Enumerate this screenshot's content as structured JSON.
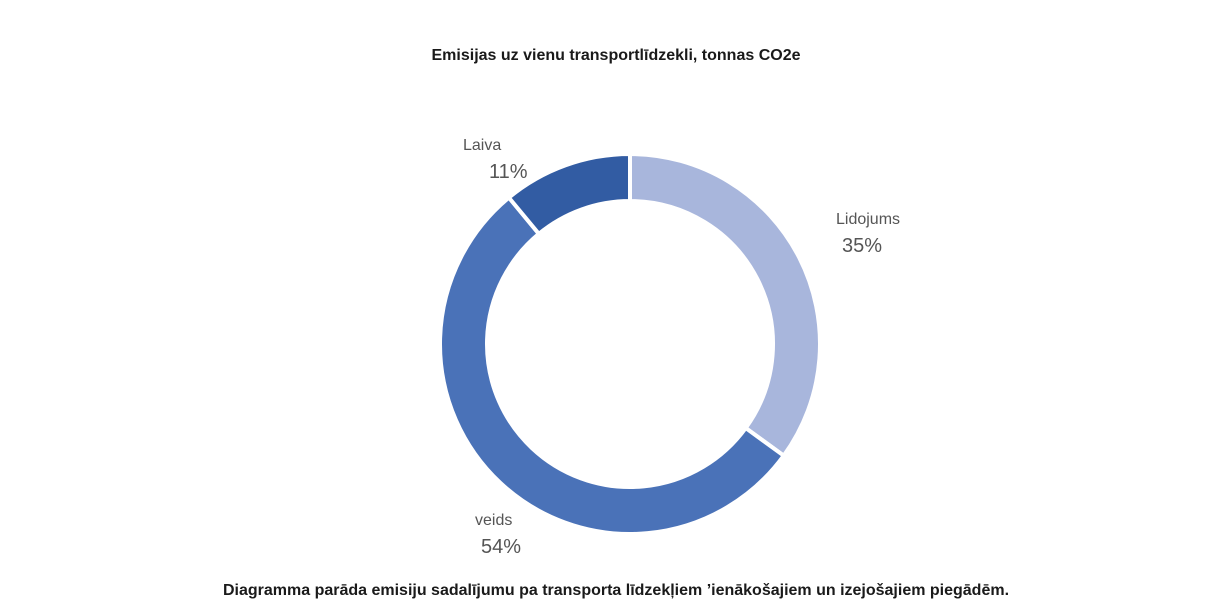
{
  "chart_data": {
    "type": "pie",
    "variant": "donut",
    "title": "Emisijas uz vienu transportlīdzekli, tonnas CO2e",
    "caption": "Diagramma parāda emisiju sadalījumu pa transporta līdzekļiem ’ienākošajiem un izejošajiem piegādēm.",
    "slices": [
      {
        "label": "Lidojums",
        "value": 35,
        "value_label": "35%",
        "color": "#A8B6DC"
      },
      {
        "label": "veids",
        "value": 54,
        "value_label": "54%",
        "color": "#4A72B8"
      },
      {
        "label": "Laiva",
        "value": 11,
        "value_label": "11%",
        "color": "#325CA3"
      }
    ],
    "start_angle": "12 o'clock",
    "direction": "clockwise",
    "legend": "none"
  }
}
